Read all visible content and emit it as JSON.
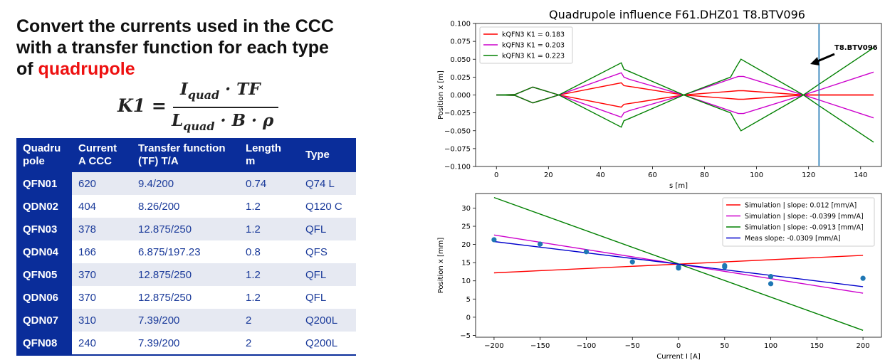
{
  "heading": {
    "line1": "Convert the currents used in the CCC",
    "line2": "with a transfer function for each type",
    "line3_prefix": "of ",
    "line3_highlight": "quadrupole"
  },
  "formula": {
    "lhs": "K1 =",
    "num_main": "I",
    "num_sub": "quad",
    "num_rest": " · TF",
    "den_main": "L",
    "den_sub": "quad",
    "den_rest": " · B · ρ"
  },
  "table": {
    "headers": [
      "Quadru pole",
      "Current A CCC",
      "Transfer function (TF) T/A",
      "Length m",
      "Type"
    ],
    "header_lines": [
      [
        "Quadru",
        "pole"
      ],
      [
        "Current",
        "A CCC"
      ],
      [
        "Transfer function",
        "(TF) T/A"
      ],
      [
        "Length",
        "m"
      ],
      [
        "Type",
        ""
      ]
    ],
    "rows": [
      [
        "QFN01",
        "620",
        "9.4/200",
        "0.74",
        "Q74 L"
      ],
      [
        "QDN02",
        "404",
        "8.26/200",
        "1.2",
        "Q120 C"
      ],
      [
        "QFN03",
        "378",
        "12.875/250",
        "1.2",
        "QFL"
      ],
      [
        "QDN04",
        "166",
        "6.875/197.23",
        "0.8",
        "QFS"
      ],
      [
        "QFN05",
        "370",
        "12.875/250",
        "1.2",
        "QFL"
      ],
      [
        "QDN06",
        "370",
        "12.875/250",
        "1.2",
        "QFL"
      ],
      [
        "QDN07",
        "310",
        "7.39/200",
        "2",
        "Q200L"
      ],
      [
        "QFN08",
        "240",
        "7.39/200",
        "2",
        "Q200L"
      ]
    ]
  },
  "chart_data": [
    {
      "type": "line",
      "title": "Quadrupole influence F61.DHZ01 T8.BTV096",
      "xlabel": "s [m]",
      "ylabel": "Position x [m]",
      "xlim": [
        -8,
        148
      ],
      "ylim": [
        -0.1,
        0.1
      ],
      "xticks": [
        "0",
        "20",
        "40",
        "60",
        "80",
        "100",
        "120",
        "140"
      ],
      "yticks": [
        "0.100",
        "0.075",
        "0.050",
        "0.025",
        "0.000",
        "−0.025",
        "−0.050",
        "−0.075",
        "−0.100"
      ],
      "legend_position": "top-left",
      "annotation": "T8.BTV096",
      "vline_x": 124,
      "vline_color": "#1f77b4",
      "series": [
        {
          "name": "kQFN3 K1 = 0.183",
          "color": "#ff0000",
          "x": [
            0,
            7,
            14,
            24,
            48,
            49,
            51,
            72,
            93,
            95,
            118,
            145
          ],
          "y": [
            0,
            0.0005,
            0.011,
            0,
            0.017,
            0.013,
            0.012,
            0,
            0.006,
            0.006,
            0,
            0
          ]
        },
        {
          "name": "kQFN3 K1 = 0.203",
          "color": "#cc00cc",
          "x": [
            0,
            7,
            14,
            24,
            48,
            49,
            51,
            72,
            93,
            95,
            118,
            124,
            145
          ],
          "y": [
            0,
            0.0005,
            0.011,
            0,
            0.031,
            0.025,
            0.022,
            0,
            0.026,
            0.026,
            0,
            0.007,
            0.032
          ]
        },
        {
          "name": "kQFN3 K1 = 0.223",
          "color": "#008000",
          "x": [
            0,
            7,
            14,
            24,
            48,
            49,
            51,
            72,
            90,
            92,
            94,
            118,
            124,
            145
          ],
          "y": [
            0,
            0.0005,
            0.011,
            0,
            0.045,
            0.036,
            0.033,
            0,
            0.025,
            0.038,
            0.05,
            0,
            0.015,
            0.066
          ]
        }
      ]
    },
    {
      "type": "line",
      "title": "",
      "xlabel": "Current I [A]",
      "ylabel": "Position x [mm]",
      "xlim": [
        -220,
        220
      ],
      "ylim": [
        -5.5,
        34
      ],
      "xticks": [
        "−200",
        "−150",
        "−100",
        "−50",
        "0",
        "50",
        "100",
        "150",
        "200"
      ],
      "yticks": [
        "30",
        "25",
        "20",
        "15",
        "10",
        "5",
        "0",
        "−5"
      ],
      "legend_position": "top-right",
      "series": [
        {
          "name": "Simulation | slope: 0.012 [mm/A]",
          "color": "#ff0000",
          "x": [
            -200,
            200
          ],
          "y": [
            12.2,
            17.0
          ]
        },
        {
          "name": "Simulation | slope: -0.0399 [mm/A]",
          "color": "#cc00cc",
          "x": [
            -200,
            200
          ],
          "y": [
            22.6,
            6.6
          ]
        },
        {
          "name": "Simulation | slope: -0.0913 [mm/A]",
          "color": "#008000",
          "x": [
            -200,
            200
          ],
          "y": [
            32.9,
            -3.6
          ]
        },
        {
          "name": "Meas slope: -0.0309 [mm/A]",
          "color": "#0000cc",
          "x": [
            -200,
            200
          ],
          "y": [
            20.8,
            8.4
          ]
        }
      ],
      "points": {
        "color": "#1f77b4",
        "x": [
          -200,
          -150,
          -100,
          -50,
          0,
          0,
          50,
          50,
          100,
          100,
          200
        ],
        "y": [
          21.3,
          20.1,
          18.0,
          15.2,
          13.8,
          13.5,
          14.2,
          13.8,
          11.2,
          9.2,
          10.7
        ]
      }
    }
  ]
}
